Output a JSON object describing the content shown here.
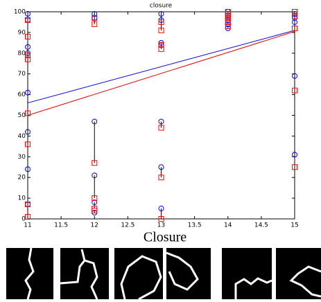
{
  "caption": "Closure",
  "chart_data": {
    "type": "scatter",
    "title": "closure",
    "xlim": [
      11,
      15
    ],
    "ylim": [
      0,
      100
    ],
    "xticks": [
      11,
      11.5,
      12,
      12.5,
      13,
      13.5,
      14,
      14.5,
      15
    ],
    "yticks": [
      0,
      10,
      20,
      30,
      40,
      50,
      60,
      70,
      80,
      90,
      100
    ],
    "connect_pairs": true,
    "series": [
      {
        "color": "#0000ff",
        "marker": "circle",
        "x": [
          11,
          11,
          11,
          11,
          11,
          11,
          11,
          11,
          12,
          12,
          12,
          12,
          12,
          12,
          13,
          13,
          13,
          13,
          13,
          13,
          13,
          14,
          14,
          14,
          14,
          14,
          14,
          15,
          15,
          15,
          15,
          15
        ],
        "values": [
          99,
          96,
          83,
          80,
          61,
          42,
          24,
          7,
          99,
          97,
          47,
          21,
          8,
          3,
          99,
          96,
          85,
          84,
          47,
          25,
          5,
          100,
          98,
          97,
          96,
          94,
          92,
          99,
          97,
          95,
          69,
          31
        ]
      },
      {
        "color": "#ff0000",
        "marker": "square",
        "x": [
          11,
          11,
          11,
          11,
          11,
          11,
          11,
          11,
          12,
          12,
          12,
          12,
          12,
          12,
          13,
          13,
          13,
          13,
          13,
          13,
          13,
          14,
          14,
          14,
          14,
          14,
          14,
          15,
          15,
          15,
          15,
          15
        ],
        "values": [
          96,
          88,
          79,
          77,
          51,
          36,
          7,
          1,
          97,
          94,
          27,
          10,
          5,
          4,
          95,
          91,
          84,
          82,
          44,
          20,
          0,
          100,
          99,
          98,
          97,
          95,
          93,
          100,
          98,
          92,
          62,
          25
        ]
      }
    ],
    "lines": [
      {
        "color": "#0000ff",
        "x": [
          11,
          15
        ],
        "values": [
          56,
          91
        ]
      },
      {
        "color": "#ff0000",
        "x": [
          11,
          15
        ],
        "values": [
          50,
          90.5
        ]
      }
    ]
  }
}
